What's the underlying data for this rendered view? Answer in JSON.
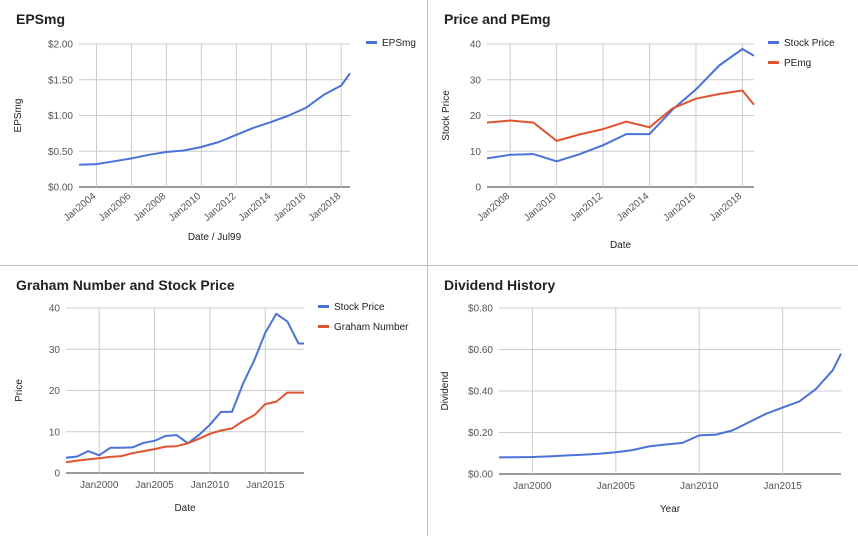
{
  "charts": [
    {
      "title": "EPSmg",
      "chart_data": {
        "type": "line",
        "x": [
          "2003-01",
          "2004-01",
          "2005-01",
          "2006-01",
          "2007-01",
          "2008-01",
          "2009-01",
          "2010-01",
          "2011-01",
          "2012-01",
          "2013-01",
          "2014-01",
          "2015-01",
          "2016-01",
          "2017-01",
          "2018-01",
          "2018-07"
        ],
        "series": [
          {
            "name": "EPSmg",
            "color": "#4a72d8",
            "values": [
              0.31,
              0.32,
              0.36,
              0.4,
              0.45,
              0.49,
              0.51,
              0.56,
              0.63,
              0.73,
              0.83,
              0.91,
              1.0,
              1.11,
              1.29,
              1.42,
              1.59
            ]
          }
        ],
        "xlabel": "Date / Jul99",
        "ylabel": "EPSmg",
        "ylim": [
          0,
          2
        ],
        "yticks": [
          0,
          0.5,
          1,
          1.5,
          2
        ],
        "ytick_labels": [
          "$0.00",
          "$0.50",
          "$1.00",
          "$1.50",
          "$2.00"
        ],
        "xticks": [
          "2004-01",
          "2006-01",
          "2008-01",
          "2010-01",
          "2012-01",
          "2014-01",
          "2016-01",
          "2018-01"
        ],
        "xtick_labels": [
          "Jan2004",
          "Jan2006",
          "Jan2008",
          "Jan2010",
          "Jan2012",
          "Jan2014",
          "Jan2016",
          "Jan2018"
        ],
        "grid": true,
        "legend": "right"
      }
    },
    {
      "title": "Price and PEmg",
      "chart_data": {
        "type": "line",
        "x": [
          "2007-01",
          "2008-01",
          "2009-01",
          "2010-01",
          "2011-01",
          "2012-01",
          "2013-01",
          "2014-01",
          "2015-01",
          "2016-01",
          "2017-01",
          "2018-01",
          "2018-07"
        ],
        "series": [
          {
            "name": "Stock Price",
            "color": "#4a72d8",
            "values": [
              8,
              9,
              9.2,
              7.2,
              9.2,
              11.7,
              14.8,
              14.8,
              21.7,
              27.3,
              34,
              38.6,
              36.7
            ]
          },
          {
            "name": "PEmg",
            "color": "#e0532f",
            "values": [
              18,
              18.6,
              18,
              12.9,
              14.7,
              16.2,
              18.3,
              16.7,
              22,
              24.7,
              26,
              27,
              23
            ]
          }
        ],
        "xlabel": "Date",
        "ylabel": "Stock Price",
        "ylim": [
          0,
          40
        ],
        "yticks": [
          0,
          10,
          20,
          30,
          40
        ],
        "ytick_labels": [
          "0",
          "10",
          "20",
          "30",
          "40"
        ],
        "xticks": [
          "2008-01",
          "2010-01",
          "2012-01",
          "2014-01",
          "2016-01",
          "2018-01"
        ],
        "xtick_labels": [
          "Jan2008",
          "Jan2010",
          "Jan2012",
          "Jan2014",
          "Jan2016",
          "Jan2018"
        ],
        "grid": true,
        "legend": "right"
      }
    },
    {
      "title": "Graham Number and Stock Price",
      "chart_data": {
        "type": "line",
        "x": [
          "1997-01",
          "1998-01",
          "1999-01",
          "2000-01",
          "2001-01",
          "2002-01",
          "2003-01",
          "2004-01",
          "2005-01",
          "2006-01",
          "2007-01",
          "2008-01",
          "2009-01",
          "2010-01",
          "2011-01",
          "2012-01",
          "2013-01",
          "2014-01",
          "2015-01",
          "2016-01",
          "2017-01",
          "2018-01",
          "2018-07"
        ],
        "series": [
          {
            "name": "Stock Price",
            "color": "#4a72d8",
            "values": [
              3.7,
              4,
              5.3,
              4.3,
              6.1,
              6.1,
              6.2,
              7.3,
              7.8,
              9,
              9.2,
              7.2,
              9.2,
              11.7,
              14.8,
              14.8,
              21.7,
              27.3,
              34,
              38.6,
              36.7,
              31.4,
              31.4
            ]
          },
          {
            "name": "Graham Number",
            "color": "#e0532f",
            "values": [
              2.6,
              3,
              3.3,
              3.6,
              3.9,
              4.1,
              4.8,
              5.3,
              5.8,
              6.4,
              6.5,
              7.2,
              8.3,
              9.5,
              10.3,
              10.8,
              12.6,
              14,
              16.7,
              17.3,
              19.5,
              19.5,
              19.5
            ]
          }
        ],
        "xlabel": "Date",
        "ylabel": "Price",
        "ylim": [
          0,
          40
        ],
        "yticks": [
          0,
          10,
          20,
          30,
          40
        ],
        "ytick_labels": [
          "0",
          "10",
          "20",
          "30",
          "40"
        ],
        "xticks": [
          "2000-01",
          "2005-01",
          "2010-01",
          "2015-01"
        ],
        "xtick_labels": [
          "Jan2000",
          "Jan2005",
          "Jan2010",
          "Jan2015"
        ],
        "grid": true,
        "legend": "right"
      }
    },
    {
      "title": "Dividend History",
      "chart_data": {
        "type": "line",
        "x": [
          "1998-01",
          "1999-01",
          "2000-01",
          "2001-01",
          "2002-01",
          "2003-01",
          "2004-01",
          "2005-01",
          "2006-01",
          "2007-01",
          "2008-01",
          "2009-01",
          "2010-01",
          "2011-01",
          "2012-01",
          "2013-01",
          "2014-01",
          "2015-01",
          "2016-01",
          "2017-01",
          "2018-01"
        ],
        "series": [
          {
            "name": "Dividend",
            "color": "#4a72d8",
            "values": [
              0.08,
              0.081,
              0.082,
              0.085,
              0.089,
              0.093,
              0.098,
              0.105,
              0.115,
              0.133,
              0.142,
              0.15,
              0.186,
              0.19,
              0.21,
              0.25,
              0.29,
              0.32,
              0.35,
              0.41,
              0.5
            ]
          }
        ],
        "extra_end": {
          "x": "2018-07",
          "value": 0.58
        },
        "xlabel": "Year",
        "ylabel": "Dividend",
        "ylim": [
          0,
          0.8
        ],
        "yticks": [
          0,
          0.2,
          0.4,
          0.6,
          0.8
        ],
        "ytick_labels": [
          "$0.00",
          "$0.20",
          "$0.40",
          "$0.60",
          "$0.80"
        ],
        "xticks": [
          "2000-01",
          "2005-01",
          "2010-01",
          "2015-01"
        ],
        "xtick_labels": [
          "Jan2000",
          "Jan2005",
          "Jan2010",
          "Jan2015"
        ],
        "grid": true,
        "legend": "none"
      }
    }
  ]
}
